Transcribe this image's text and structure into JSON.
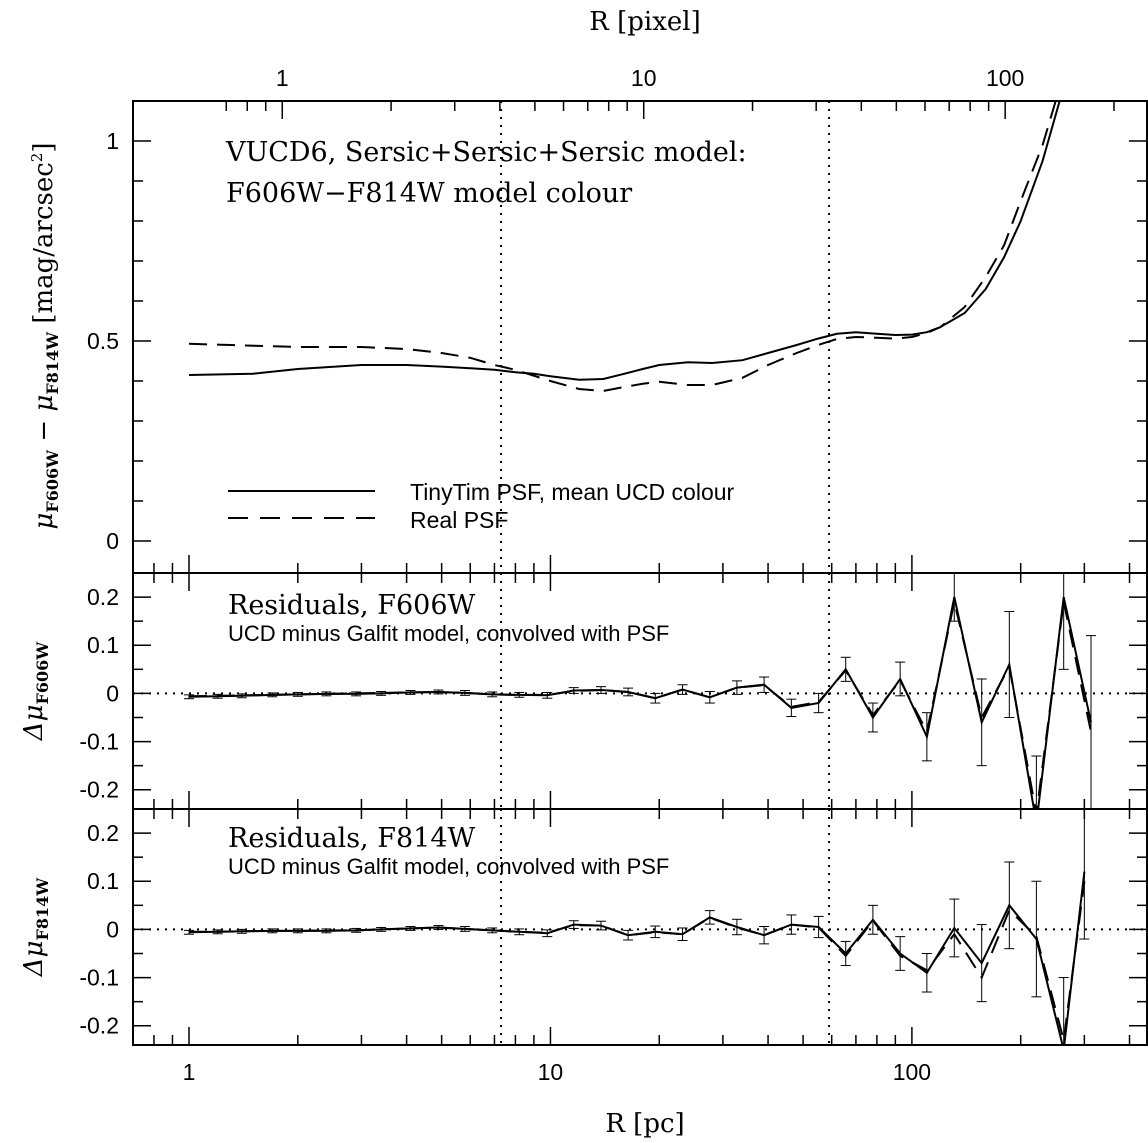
{
  "figure": {
    "top_axis_label": "R [pixel]",
    "bottom_axis_label": "R [pc]"
  },
  "chart_data": [
    {
      "type": "line",
      "panel": "top",
      "title_line1": "VUCD6, Sersic+Sersic+Sersic model:",
      "title_line2": "F606W−F814W model colour",
      "xlabel": "R [pc]",
      "x2label": "R [pixel]",
      "ylabel_main": "μ",
      "ylabel_sub1": "F606W",
      "ylabel_mid": " − μ",
      "ylabel_sub2": "F814W",
      "ylabel_units": " [mag/arcsec",
      "ylabel_sup": "2",
      "ylabel_close": "]",
      "x_scale": "log",
      "xlim": [
        0.7,
        450
      ],
      "ylim": [
        -0.08,
        1.1
      ],
      "x2_ticklabels": [
        "1",
        "10",
        "100"
      ],
      "y_ticklabels": [
        "0",
        "0.5",
        "1"
      ],
      "x_ticklabels": [
        "1",
        "10",
        "100"
      ],
      "vertical_lines_pc": [
        7.3,
        59
      ],
      "legend_position": "lower-left",
      "series": [
        {
          "name": "TinyTim PSF, mean UCD colour",
          "style": "solid",
          "x": [
            1,
            1.5,
            2,
            3,
            4,
            5,
            6,
            7,
            8,
            9,
            10,
            12,
            14,
            16,
            18,
            20,
            24,
            28,
            34,
            40,
            48,
            55,
            62,
            70,
            80,
            90,
            100,
            110,
            120,
            140,
            160,
            180,
            200,
            230,
            260
          ],
          "y": [
            0.415,
            0.418,
            0.43,
            0.44,
            0.44,
            0.436,
            0.432,
            0.428,
            0.422,
            0.418,
            0.412,
            0.403,
            0.405,
            0.418,
            0.43,
            0.44,
            0.447,
            0.445,
            0.452,
            0.47,
            0.49,
            0.506,
            0.518,
            0.522,
            0.518,
            0.515,
            0.516,
            0.522,
            0.535,
            0.57,
            0.63,
            0.71,
            0.8,
            0.95,
            1.12
          ]
        },
        {
          "name": "Real PSF",
          "style": "dashed",
          "x": [
            1,
            2,
            3,
            4,
            5,
            6,
            7,
            8,
            10,
            12,
            14,
            16,
            18,
            20,
            24,
            28,
            34,
            40,
            48,
            55,
            62,
            70,
            80,
            90,
            100,
            110,
            120,
            140,
            160,
            180,
            200,
            230,
            250
          ],
          "y": [
            0.493,
            0.485,
            0.485,
            0.48,
            0.47,
            0.458,
            0.44,
            0.428,
            0.4,
            0.38,
            0.375,
            0.385,
            0.393,
            0.398,
            0.39,
            0.39,
            0.408,
            0.44,
            0.47,
            0.49,
            0.505,
            0.51,
            0.508,
            0.506,
            0.51,
            0.52,
            0.535,
            0.585,
            0.66,
            0.74,
            0.85,
            0.99,
            1.1
          ]
        }
      ]
    },
    {
      "type": "line",
      "panel": "middle",
      "title": "Residuals, F606W",
      "subtitle": "UCD minus Galfit model, convolved with PSF",
      "ylabel_main": "Δμ",
      "ylabel_sub": "F606W",
      "x_scale": "log",
      "xlim": [
        0.7,
        450
      ],
      "ylim": [
        -0.24,
        0.25
      ],
      "y_ticklabels": [
        "-0.2",
        "-0.1",
        "0",
        "0.1",
        "0.2"
      ],
      "series": [
        {
          "name": "",
          "style": "solid",
          "x": [
            1,
            1.2,
            1.4,
            1.7,
            2,
            2.4,
            2.9,
            3.4,
            4.1,
            4.9,
            5.8,
            6.9,
            8.2,
            9.8,
            11.6,
            13.8,
            16.4,
            19.5,
            23.2,
            27.6,
            32.8,
            39,
            46.4,
            55.2,
            65.6,
            78,
            92.8,
            110,
            131,
            156,
            186,
            221,
            263,
            313
          ],
          "y": [
            -0.007,
            -0.006,
            -0.005,
            -0.003,
            -0.002,
            -0.001,
            -0.001,
            0,
            0.002,
            0.003,
            0.001,
            -0.002,
            -0.003,
            -0.004,
            0.006,
            0.007,
            0.003,
            -0.01,
            0.008,
            -0.008,
            0.012,
            0.018,
            -0.03,
            -0.02,
            0.05,
            -0.05,
            0.03,
            -0.09,
            0.2,
            -0.06,
            0.06,
            -0.27,
            0.2,
            -0.06
          ],
          "yerr": [
            0.004,
            0.004,
            0.004,
            0.004,
            0.004,
            0.004,
            0.004,
            0.004,
            0.004,
            0.004,
            0.005,
            0.005,
            0.005,
            0.006,
            0.006,
            0.007,
            0.008,
            0.01,
            0.01,
            0.012,
            0.014,
            0.016,
            0.018,
            0.02,
            0.025,
            0.03,
            0.035,
            0.05,
            0.05,
            0.09,
            0.11,
            0.14,
            0.15,
            0.18
          ]
        },
        {
          "name": "",
          "style": "dashed",
          "x": [
            1,
            1.2,
            1.4,
            1.7,
            2,
            2.4,
            2.9,
            3.4,
            4.1,
            4.9,
            5.8,
            6.9,
            8.2,
            9.8,
            11.6,
            13.8,
            16.4,
            19.5,
            23.2,
            27.6,
            32.8,
            39,
            46.4,
            55.2,
            65.6,
            78,
            92.8,
            110,
            131,
            156,
            186,
            221,
            263,
            313
          ],
          "y": [
            -0.006,
            -0.005,
            -0.004,
            -0.003,
            -0.002,
            -0.001,
            0,
            0.001,
            0.002,
            0.003,
            0.001,
            -0.002,
            -0.003,
            -0.003,
            0.005,
            0.007,
            0.003,
            -0.01,
            0.008,
            -0.008,
            0.012,
            0.017,
            -0.028,
            -0.018,
            0.048,
            -0.045,
            0.027,
            -0.08,
            0.19,
            -0.05,
            0.055,
            -0.25,
            0.19,
            -0.08
          ]
        }
      ]
    },
    {
      "type": "line",
      "panel": "bottom",
      "title": "Residuals, F814W",
      "subtitle": "UCD minus Galfit model, convolved with PSF",
      "ylabel_main": "Δμ",
      "ylabel_sub": "F814W",
      "x_scale": "log",
      "xlim": [
        0.7,
        450
      ],
      "ylim": [
        -0.24,
        0.25
      ],
      "y_ticklabels": [
        "-0.2",
        "-0.1",
        "0",
        "0.1",
        "0.2"
      ],
      "x_ticklabels": [
        "1",
        "10",
        "100"
      ],
      "series": [
        {
          "name": "",
          "style": "solid",
          "x": [
            1,
            1.2,
            1.4,
            1.7,
            2,
            2.4,
            2.9,
            3.4,
            4.1,
            4.9,
            5.8,
            6.9,
            8.2,
            9.8,
            11.6,
            13.8,
            16.4,
            19.5,
            23.2,
            27.6,
            32.8,
            39,
            46.4,
            55.2,
            65.6,
            78,
            92.8,
            110,
            131,
            156,
            186,
            221,
            263,
            300
          ],
          "y": [
            -0.006,
            -0.005,
            -0.004,
            -0.003,
            -0.003,
            -0.003,
            -0.002,
            0,
            0.002,
            0.004,
            0.001,
            -0.002,
            -0.005,
            -0.008,
            0.01,
            0.008,
            -0.012,
            -0.005,
            -0.01,
            0.025,
            0.005,
            -0.012,
            0.01,
            0.005,
            -0.05,
            0.02,
            -0.05,
            -0.09,
            0.003,
            -0.07,
            0.05,
            -0.02,
            -0.25,
            0.12
          ],
          "yerr": [
            0.004,
            0.004,
            0.004,
            0.004,
            0.004,
            0.004,
            0.004,
            0.004,
            0.004,
            0.004,
            0.005,
            0.005,
            0.006,
            0.007,
            0.008,
            0.009,
            0.01,
            0.012,
            0.013,
            0.014,
            0.016,
            0.018,
            0.02,
            0.022,
            0.025,
            0.03,
            0.035,
            0.04,
            0.06,
            0.08,
            0.09,
            0.12,
            0.15,
            0.14
          ]
        },
        {
          "name": "",
          "style": "dashed",
          "x": [
            1,
            1.2,
            1.4,
            1.7,
            2,
            2.4,
            2.9,
            3.4,
            4.1,
            4.9,
            5.8,
            6.9,
            8.2,
            9.8,
            11.6,
            13.8,
            16.4,
            19.5,
            23.2,
            27.6,
            32.8,
            39,
            46.4,
            55.2,
            65.6,
            78,
            92.8,
            110,
            131,
            156,
            186,
            221,
            263,
            300
          ],
          "y": [
            -0.005,
            -0.005,
            -0.004,
            -0.003,
            -0.003,
            -0.002,
            -0.002,
            0,
            0.002,
            0.004,
            0.001,
            -0.002,
            -0.005,
            -0.007,
            0.009,
            0.008,
            -0.012,
            -0.006,
            -0.01,
            0.024,
            0.004,
            -0.012,
            0.01,
            0.004,
            -0.055,
            0.018,
            -0.055,
            -0.085,
            -0.01,
            -0.1,
            0.04,
            -0.015,
            -0.23,
            0.1
          ]
        }
      ]
    }
  ]
}
